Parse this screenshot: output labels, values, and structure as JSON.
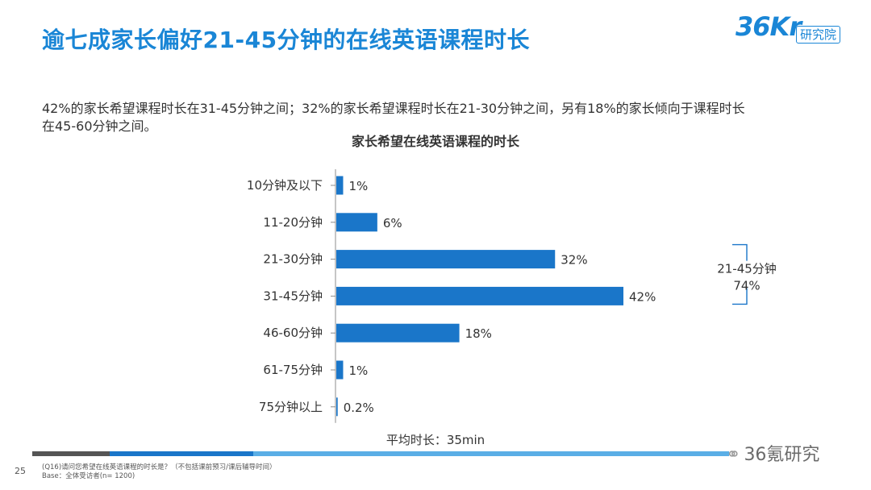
{
  "header": {
    "title": "逾七成家长偏好21-45分钟的在线英语课程时长",
    "logo_mark": "36Kr",
    "logo_sub": "研究院"
  },
  "summary": {
    "line1": "42%的家长希望课程时长在31-45分钟之间；32%的家长希望课程时长在21-30分钟之间，另有18%的家长倾向于课程时长",
    "line2": "在45-60分钟之间。"
  },
  "chart_data": {
    "type": "bar",
    "orientation": "horizontal",
    "title": "家长希望在线英语课程的时长",
    "categories": [
      "10分钟及以下",
      "11-20分钟",
      "21-30分钟",
      "31-45分钟",
      "46-60分钟",
      "61-75分钟",
      "75分钟以上"
    ],
    "values": [
      1,
      6,
      32,
      42,
      18,
      1,
      0.2
    ],
    "value_labels": [
      "1%",
      "6%",
      "32%",
      "42%",
      "18%",
      "1%",
      "0.2%"
    ],
    "unit": "%",
    "xlim": [
      0,
      45
    ],
    "grid": false,
    "bar_color": "#1a76c9",
    "bracket_annotation": {
      "label": "21-45分钟",
      "value": "74%",
      "spans_categories": [
        "21-30分钟",
        "31-45分钟"
      ]
    },
    "average_note": "平均时长：35min"
  },
  "footer": {
    "page_number": "25",
    "question": "(Q16)请问您希望在线英语课程的时长是？（不包括课前预习/课后辅导时间）",
    "base": "Base：全体受访者(n= 1200)",
    "watermark": "36氪研究",
    "watermark_icon": "wechat-bubble-icon"
  },
  "colors": {
    "title_blue": "#1a86d6",
    "bar_blue": "#1a76c9",
    "footer_light_blue": "#5aaee6",
    "footer_gray": "#555555"
  }
}
